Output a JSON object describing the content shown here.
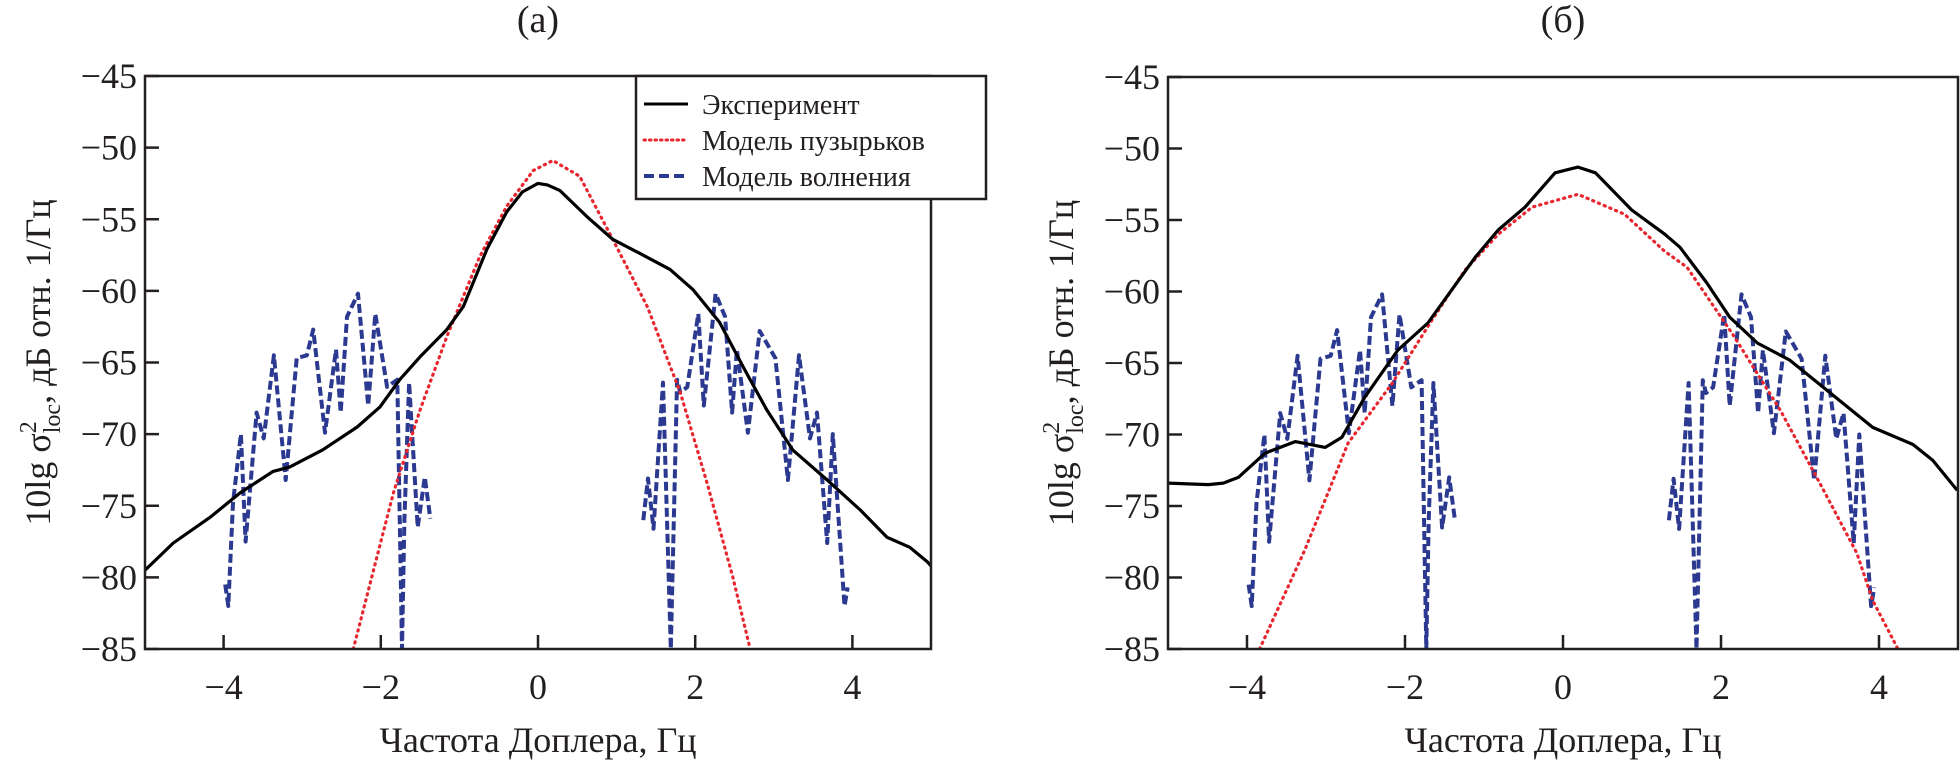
{
  "chart_data": [
    {
      "type": "line",
      "panel": "a",
      "title": "(a)",
      "xlabel": "Частота Доплера, Гц",
      "ylabel": {
        "prefix": "10lg σ",
        "sup": "2",
        "sub": "loc",
        "suffix": ", дБ отн. 1/Гц"
      },
      "xlim": [
        -5,
        5
      ],
      "ylim": [
        -85,
        -45
      ],
      "xticks": [
        -4,
        -2,
        0,
        2,
        4
      ],
      "xtick_labels": [
        "−4",
        "−2",
        "0",
        "2",
        "4"
      ],
      "yticks": [
        -45,
        -50,
        -55,
        -60,
        -65,
        -70,
        -75,
        -80,
        -85
      ],
      "ytick_labels": [
        "−45",
        "−50",
        "−55",
        "−60",
        "−65",
        "−70",
        "−75",
        "−80",
        "−85"
      ],
      "grid": false,
      "legend": {
        "position": "top-right",
        "entries": [
          {
            "label": "Эксперимент",
            "series": "experiment"
          },
          {
            "label": "Модель пузырьков",
            "series": "bubbles"
          },
          {
            "label": "Модель волнения",
            "series": "waves"
          }
        ]
      },
      "series": [
        {
          "name": "Эксперимент",
          "key": "experiment",
          "color": "#000000",
          "style": "solid",
          "x": [
            -5,
            -4.64,
            -4.17,
            -3.79,
            -3.37,
            -3.16,
            -2.74,
            -2.3,
            -2.01,
            -1.76,
            -1.5,
            -1.16,
            -0.95,
            -0.65,
            -0.4,
            -0.2,
            0.0,
            0.12,
            0.28,
            0.62,
            0.95,
            1.3,
            1.68,
            1.97,
            2.31,
            2.61,
            2.91,
            3.24,
            3.68,
            4.1,
            4.44,
            4.73,
            4.95,
            5.0
          ],
          "y": [
            -79.5,
            -77.6,
            -75.8,
            -74.1,
            -72.6,
            -72.3,
            -71.1,
            -69.5,
            -68.1,
            -66.2,
            -64.6,
            -62.7,
            -61.1,
            -57.1,
            -54.5,
            -53.1,
            -52.5,
            -52.6,
            -53.0,
            -54.8,
            -56.4,
            -57.4,
            -58.5,
            -59.9,
            -62.2,
            -65.3,
            -68.3,
            -71.1,
            -73.2,
            -75.3,
            -77.2,
            -77.9,
            -78.9,
            -79.2
          ]
        },
        {
          "name": "Модель пузырьков",
          "key": "bubbles",
          "color": "#e8262f",
          "style": "dotted",
          "x": [
            -2.35,
            -1.84,
            -1.5,
            -1.16,
            -0.74,
            -0.4,
            -0.06,
            0.19,
            0.53,
            0.95,
            1.39,
            1.81,
            2.15,
            2.48,
            2.7
          ],
          "y": [
            -85,
            -74.1,
            -68.3,
            -63.2,
            -57.6,
            -54.1,
            -51.6,
            -50.9,
            -52.0,
            -56.4,
            -61.1,
            -67.1,
            -73.4,
            -80.0,
            -85
          ]
        },
        {
          "name": "Модель волнения",
          "key": "waves",
          "color": "#2b3990",
          "style": "dashed",
          "segments": [
            {
              "x": [
                -3.98,
                -3.94,
                -3.88,
                -3.78,
                -3.72,
                -3.58,
                -3.49,
                -3.36,
                -3.21,
                -3.07,
                -2.94,
                -2.86,
                -2.71,
                -2.57,
                -2.51,
                -2.43,
                -2.29,
                -2.16,
                -2.07,
                -1.92,
                -1.79,
                -1.73,
                -1.73,
                -1.7,
                -1.64,
                -1.53,
                -1.44,
                -1.37
              ],
              "y": [
                -80.5,
                -82.0,
                -74.8,
                -70.0,
                -77.5,
                -68.5,
                -70.3,
                -64.5,
                -73.2,
                -64.7,
                -64.5,
                -62.7,
                -69.9,
                -64.1,
                -68.5,
                -61.8,
                -60.2,
                -68.0,
                -61.6,
                -66.7,
                -66.2,
                -85.0,
                -85.0,
                -76.0,
                -66.4,
                -76.5,
                -73.0,
                -75.9
              ]
            },
            {
              "x": [
                1.34,
                1.4,
                1.47,
                1.59,
                1.69,
                1.69,
                1.77,
                1.81,
                1.9,
                2.04,
                2.11,
                2.26,
                2.38,
                2.47,
                2.53,
                2.67,
                2.82,
                3.02,
                3.18,
                3.32,
                3.46,
                3.55,
                3.68,
                3.75,
                3.9,
                3.94
              ],
              "y": [
                -76.0,
                -73.1,
                -76.6,
                -66.4,
                -85.0,
                -85.0,
                -66.2,
                -67.1,
                -66.7,
                -61.6,
                -68.0,
                -60.2,
                -61.8,
                -68.5,
                -64.1,
                -69.9,
                -62.8,
                -64.7,
                -73.2,
                -64.5,
                -70.3,
                -68.5,
                -77.6,
                -70.0,
                -82.0,
                -80.7
              ]
            }
          ]
        }
      ]
    },
    {
      "type": "line",
      "panel": "b",
      "title": "(б)",
      "xlabel": "Частота Доплера, Гц",
      "ylabel": {
        "prefix": "10lg σ",
        "sup": "2",
        "sub": "loc",
        "suffix": ", дБ отн. 1/Гц"
      },
      "xlim": [
        -5,
        5
      ],
      "ylim": [
        -85,
        -45
      ],
      "xticks": [
        -4,
        -2,
        0,
        2,
        4
      ],
      "xtick_labels": [
        "−4",
        "−2",
        "0",
        "2",
        "4"
      ],
      "yticks": [
        -45,
        -50,
        -55,
        -60,
        -65,
        -70,
        -75,
        -80,
        -85
      ],
      "ytick_labels": [
        "−45",
        "−50",
        "−55",
        "−60",
        "−65",
        "−70",
        "−75",
        "−80",
        "−85"
      ],
      "grid": false,
      "legend": null,
      "series": [
        {
          "name": "Эксперимент",
          "key": "experiment",
          "color": "#000000",
          "style": "solid",
          "x": [
            -5,
            -4.49,
            -4.3,
            -4.11,
            -3.77,
            -3.39,
            -3.01,
            -2.8,
            -2.51,
            -2.09,
            -1.71,
            -1.41,
            -1.11,
            -0.82,
            -0.48,
            -0.1,
            0.19,
            0.41,
            0.87,
            1.29,
            1.48,
            1.82,
            2.11,
            2.46,
            2.87,
            3.34,
            3.92,
            4.43,
            4.68,
            4.99
          ],
          "y": [
            -73.4,
            -73.5,
            -73.4,
            -73.0,
            -71.3,
            -70.5,
            -70.9,
            -70.2,
            -67.4,
            -64.1,
            -62.2,
            -59.9,
            -57.6,
            -55.7,
            -54.1,
            -51.7,
            -51.3,
            -51.7,
            -54.3,
            -56.0,
            -56.9,
            -59.4,
            -61.8,
            -63.6,
            -64.8,
            -66.9,
            -69.5,
            -70.7,
            -71.8,
            -73.9
          ]
        },
        {
          "name": "Модель пузырьков",
          "key": "bubbles",
          "color": "#e8262f",
          "style": "dotted",
          "x": [
            -3.84,
            -3.27,
            -2.72,
            -2.16,
            -1.66,
            -1.24,
            -0.82,
            -0.39,
            0.19,
            0.78,
            1.29,
            1.57,
            2.15,
            2.75,
            3.25,
            3.72,
            3.92,
            4.23
          ],
          "y": [
            -85,
            -78.1,
            -70.6,
            -66.4,
            -62.0,
            -58.5,
            -56.0,
            -54.1,
            -53.2,
            -54.6,
            -57.2,
            -58.3,
            -63.0,
            -68.3,
            -73.4,
            -78.3,
            -81.6,
            -84.9
          ]
        },
        {
          "name": "Модель волнения",
          "key": "waves",
          "color": "#2b3990",
          "style": "dashed",
          "segments": [
            {
              "x": [
                -3.98,
                -3.94,
                -3.88,
                -3.78,
                -3.72,
                -3.58,
                -3.49,
                -3.36,
                -3.21,
                -3.07,
                -2.94,
                -2.86,
                -2.71,
                -2.57,
                -2.51,
                -2.43,
                -2.29,
                -2.16,
                -2.07,
                -1.92,
                -1.79,
                -1.73,
                -1.73,
                -1.7,
                -1.64,
                -1.53,
                -1.44,
                -1.37
              ],
              "y": [
                -80.5,
                -82.0,
                -74.8,
                -70.0,
                -77.5,
                -68.5,
                -70.3,
                -64.5,
                -73.2,
                -64.7,
                -64.5,
                -62.7,
                -69.9,
                -64.1,
                -68.5,
                -61.8,
                -60.2,
                -68.0,
                -61.6,
                -66.7,
                -66.2,
                -85.0,
                -85.0,
                -76.0,
                -66.4,
                -76.5,
                -73.0,
                -75.9
              ]
            },
            {
              "x": [
                1.34,
                1.4,
                1.47,
                1.59,
                1.69,
                1.69,
                1.77,
                1.81,
                1.9,
                2.04,
                2.11,
                2.26,
                2.38,
                2.47,
                2.53,
                2.67,
                2.82,
                3.02,
                3.18,
                3.32,
                3.46,
                3.55,
                3.68,
                3.75,
                3.9,
                3.94
              ],
              "y": [
                -76.0,
                -73.1,
                -76.6,
                -66.4,
                -85.0,
                -85.0,
                -66.2,
                -67.1,
                -66.7,
                -61.6,
                -68.0,
                -60.2,
                -61.8,
                -68.5,
                -64.1,
                -69.9,
                -62.8,
                -64.7,
                -73.2,
                -64.5,
                -70.3,
                -68.5,
                -77.6,
                -70.0,
                -82.0,
                -80.7
              ]
            }
          ]
        }
      ]
    }
  ]
}
